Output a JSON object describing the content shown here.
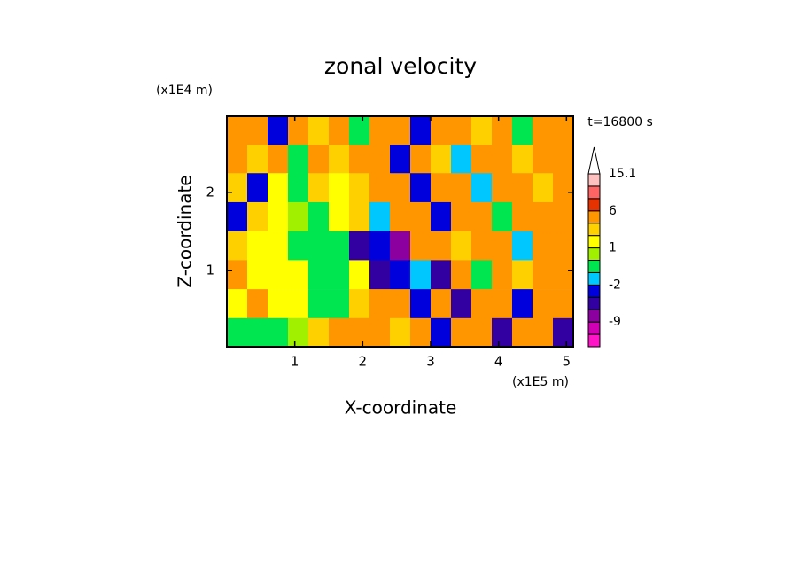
{
  "chart_data": {
    "type": "contour",
    "title": "zonal velocity",
    "time_label": "t=16800 s",
    "xlabel": "X-coordinate",
    "ylabel": "Z-coordinate",
    "x_unit": "(x1E5 m)",
    "y_unit": "(x1E4 m)",
    "xlim": [
      0,
      5.1
    ],
    "ylim": [
      0.03,
      2.97
    ],
    "xticks": [
      1,
      2,
      3,
      4,
      5
    ],
    "yticks": [
      1,
      2
    ],
    "x": [
      0.15,
      0.45,
      0.75,
      1.05,
      1.35,
      1.65,
      1.95,
      2.25,
      2.55,
      2.85,
      3.15,
      3.45,
      3.75,
      4.05,
      4.35,
      4.65,
      4.95
    ],
    "y": [
      2.79,
      2.42,
      2.06,
      1.69,
      1.32,
      0.95,
      0.58,
      0.21
    ],
    "z": [
      [
        3,
        4,
        -4,
        3,
        2,
        4,
        -1,
        4,
        3,
        -4,
        4,
        3,
        2,
        4,
        -1,
        3,
        4
      ],
      [
        4,
        2,
        3,
        -1,
        3,
        2,
        4,
        3,
        -4,
        4,
        2,
        -2,
        3,
        4,
        2,
        4,
        3
      ],
      [
        2,
        -4,
        1,
        -1,
        2,
        1,
        2,
        4,
        3,
        -4,
        4,
        3,
        -2,
        4,
        3,
        2,
        4
      ],
      [
        -4,
        2,
        1,
        0,
        -1,
        1,
        2,
        -2,
        3,
        4,
        -4,
        3,
        4,
        -1,
        3,
        4,
        3
      ],
      [
        2,
        1,
        1,
        -1,
        -1,
        -1,
        -6,
        -4,
        -9,
        4,
        3,
        2,
        4,
        3,
        -2,
        3,
        4
      ],
      [
        3,
        1,
        1,
        1,
        -1,
        -1,
        1,
        -6,
        -4,
        -2,
        -6,
        3,
        -1,
        4,
        2,
        3,
        4
      ],
      [
        1,
        4,
        1,
        1,
        -1,
        -1,
        2,
        3,
        4,
        -4,
        3,
        -6,
        4,
        3,
        -4,
        4,
        3
      ],
      [
        -1,
        -1,
        -1,
        0,
        2,
        3,
        4,
        3,
        2,
        3,
        -4,
        4,
        3,
        -6,
        4,
        3,
        -6
      ]
    ],
    "levels": [
      -15,
      -12,
      -9,
      -6,
      -4,
      -2,
      -1,
      0,
      1,
      2,
      3,
      6,
      9,
      12,
      15.1
    ],
    "colors": [
      "#ff14c8",
      "#d200b4",
      "#8c00a0",
      "#3200a0",
      "#0000dc",
      "#00c8ff",
      "#00e650",
      "#a0f000",
      "#ffff00",
      "#ffd000",
      "#ff9600",
      "#e63200",
      "#ff6464",
      "#ffc0c0"
    ],
    "colorbar_ticks": [
      -9,
      -2,
      1,
      6,
      15.1
    ]
  }
}
